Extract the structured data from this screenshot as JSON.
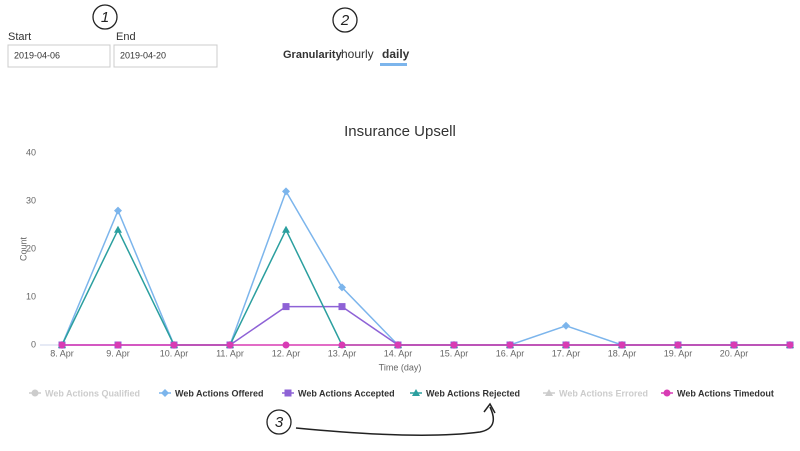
{
  "ui": {
    "start_label": "Start",
    "start_value": "2019-04-06",
    "end_label": "End",
    "end_value": "2019-04-20",
    "granularity_label": "Granularity",
    "granularity_options": [
      "hourly",
      "daily"
    ],
    "annotations": [
      "1",
      "2",
      "3"
    ]
  },
  "chart_data": {
    "type": "line",
    "title": "Insurance Upsell",
    "x_label": "Time (day)",
    "y_label": "Count",
    "categories": [
      "8. Apr",
      "9. Apr",
      "10. Apr",
      "11. Apr",
      "12. Apr",
      "13. Apr",
      "14. Apr",
      "15. Apr",
      "16. Apr",
      "17. Apr",
      "18. Apr",
      "19. Apr",
      "20. Apr",
      null
    ],
    "ylim": [
      0,
      40
    ],
    "yticks": [
      0,
      10,
      20,
      30,
      40
    ],
    "grid": false,
    "legend": "bottom",
    "series": [
      {
        "name": "Web Actions Qualified",
        "color": "#cccccc",
        "visible": false,
        "marker": "circle",
        "values": [
          null,
          null,
          null,
          null,
          null,
          null,
          null,
          null,
          null,
          null,
          null,
          null,
          null,
          null
        ]
      },
      {
        "name": "Web Actions Offered",
        "color": "#7cb5ec",
        "visible": true,
        "marker": "diamond",
        "values": [
          0,
          28,
          0,
          0,
          32,
          12,
          0,
          0,
          0,
          4,
          0,
          0,
          0,
          0
        ]
      },
      {
        "name": "Web Actions Accepted",
        "color": "#8e62d6",
        "visible": true,
        "marker": "square",
        "values": [
          0,
          0,
          0,
          0,
          8,
          8,
          0,
          0,
          0,
          0,
          0,
          0,
          0,
          0
        ]
      },
      {
        "name": "Web Actions Rejected",
        "color": "#2b9f9f",
        "visible": true,
        "marker": "triangle",
        "values": [
          0,
          24,
          0,
          0,
          24,
          0,
          0,
          0,
          0,
          0,
          0,
          0,
          0,
          0
        ]
      },
      {
        "name": "Web Actions Errored",
        "color": "#cccccc",
        "visible": false,
        "marker": "triangle",
        "values": [
          null,
          null,
          null,
          null,
          null,
          null,
          null,
          null,
          null,
          null,
          null,
          null,
          null,
          null
        ]
      },
      {
        "name": "Web Actions Timedout",
        "color": "#d83bb4",
        "visible": true,
        "marker": "circle",
        "values": [
          0,
          0,
          0,
          0,
          0,
          0,
          0,
          0,
          0,
          0,
          0,
          0,
          0,
          0
        ]
      }
    ]
  }
}
